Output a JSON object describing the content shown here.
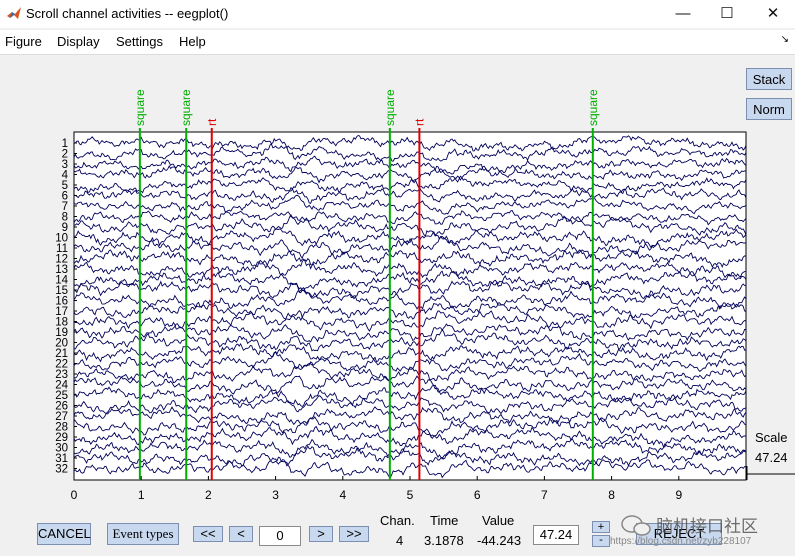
{
  "window": {
    "title": "Scroll channel activities -- eegplot()",
    "controls": {
      "minimize": "—",
      "maximize": "☐",
      "close": "✕"
    },
    "dock_arrow": "↘"
  },
  "menu": [
    "Figure",
    "Display",
    "Settings",
    "Help"
  ],
  "side_buttons": {
    "stack": "Stack",
    "norm": "Norm"
  },
  "plot": {
    "channel_labels": [
      "1",
      "2",
      "3",
      "4",
      "5",
      "6",
      "7",
      "8",
      "9",
      "10",
      "11",
      "12",
      "13",
      "14",
      "15",
      "16",
      "17",
      "18",
      "19",
      "20",
      "21",
      "22",
      "23",
      "24",
      "25",
      "26",
      "27",
      "28",
      "29",
      "30",
      "31",
      "32"
    ],
    "time_ticks": [
      "0",
      "1",
      "2",
      "3",
      "4",
      "5",
      "6",
      "7",
      "8",
      "9"
    ],
    "events": [
      {
        "label": "square",
        "time": 0.98,
        "color": "#00b000"
      },
      {
        "label": "square",
        "time": 1.67,
        "color": "#00b000"
      },
      {
        "label": "rt",
        "time": 2.05,
        "color": "#e00000"
      },
      {
        "label": "square",
        "time": 4.7,
        "color": "#00b000"
      },
      {
        "label": "rt",
        "time": 5.14,
        "color": "#e00000"
      },
      {
        "label": "square",
        "time": 7.72,
        "color": "#00b000"
      }
    ],
    "trace_color": "#00005a",
    "scale": {
      "label": "Scale",
      "value": "47.24"
    }
  },
  "bottom": {
    "cancel": "CANCEL",
    "event_types": "Event types",
    "nav": {
      "fast_back": "<<",
      "back": "<",
      "position": "0",
      "forward": ">",
      "fast_forward": ">>"
    },
    "readout": {
      "chan_label": "Chan.",
      "time_label": "Time",
      "value_label": "Value",
      "chan": "4",
      "time": "3.1878",
      "value": "-44.243"
    },
    "scale_input": "47.24",
    "scale_up": "+",
    "scale_down": "-",
    "reject": "REJECT",
    "watermark": "脑机接口社区",
    "watermark_url": "https://blog.csdn.net/zyb228107"
  }
}
